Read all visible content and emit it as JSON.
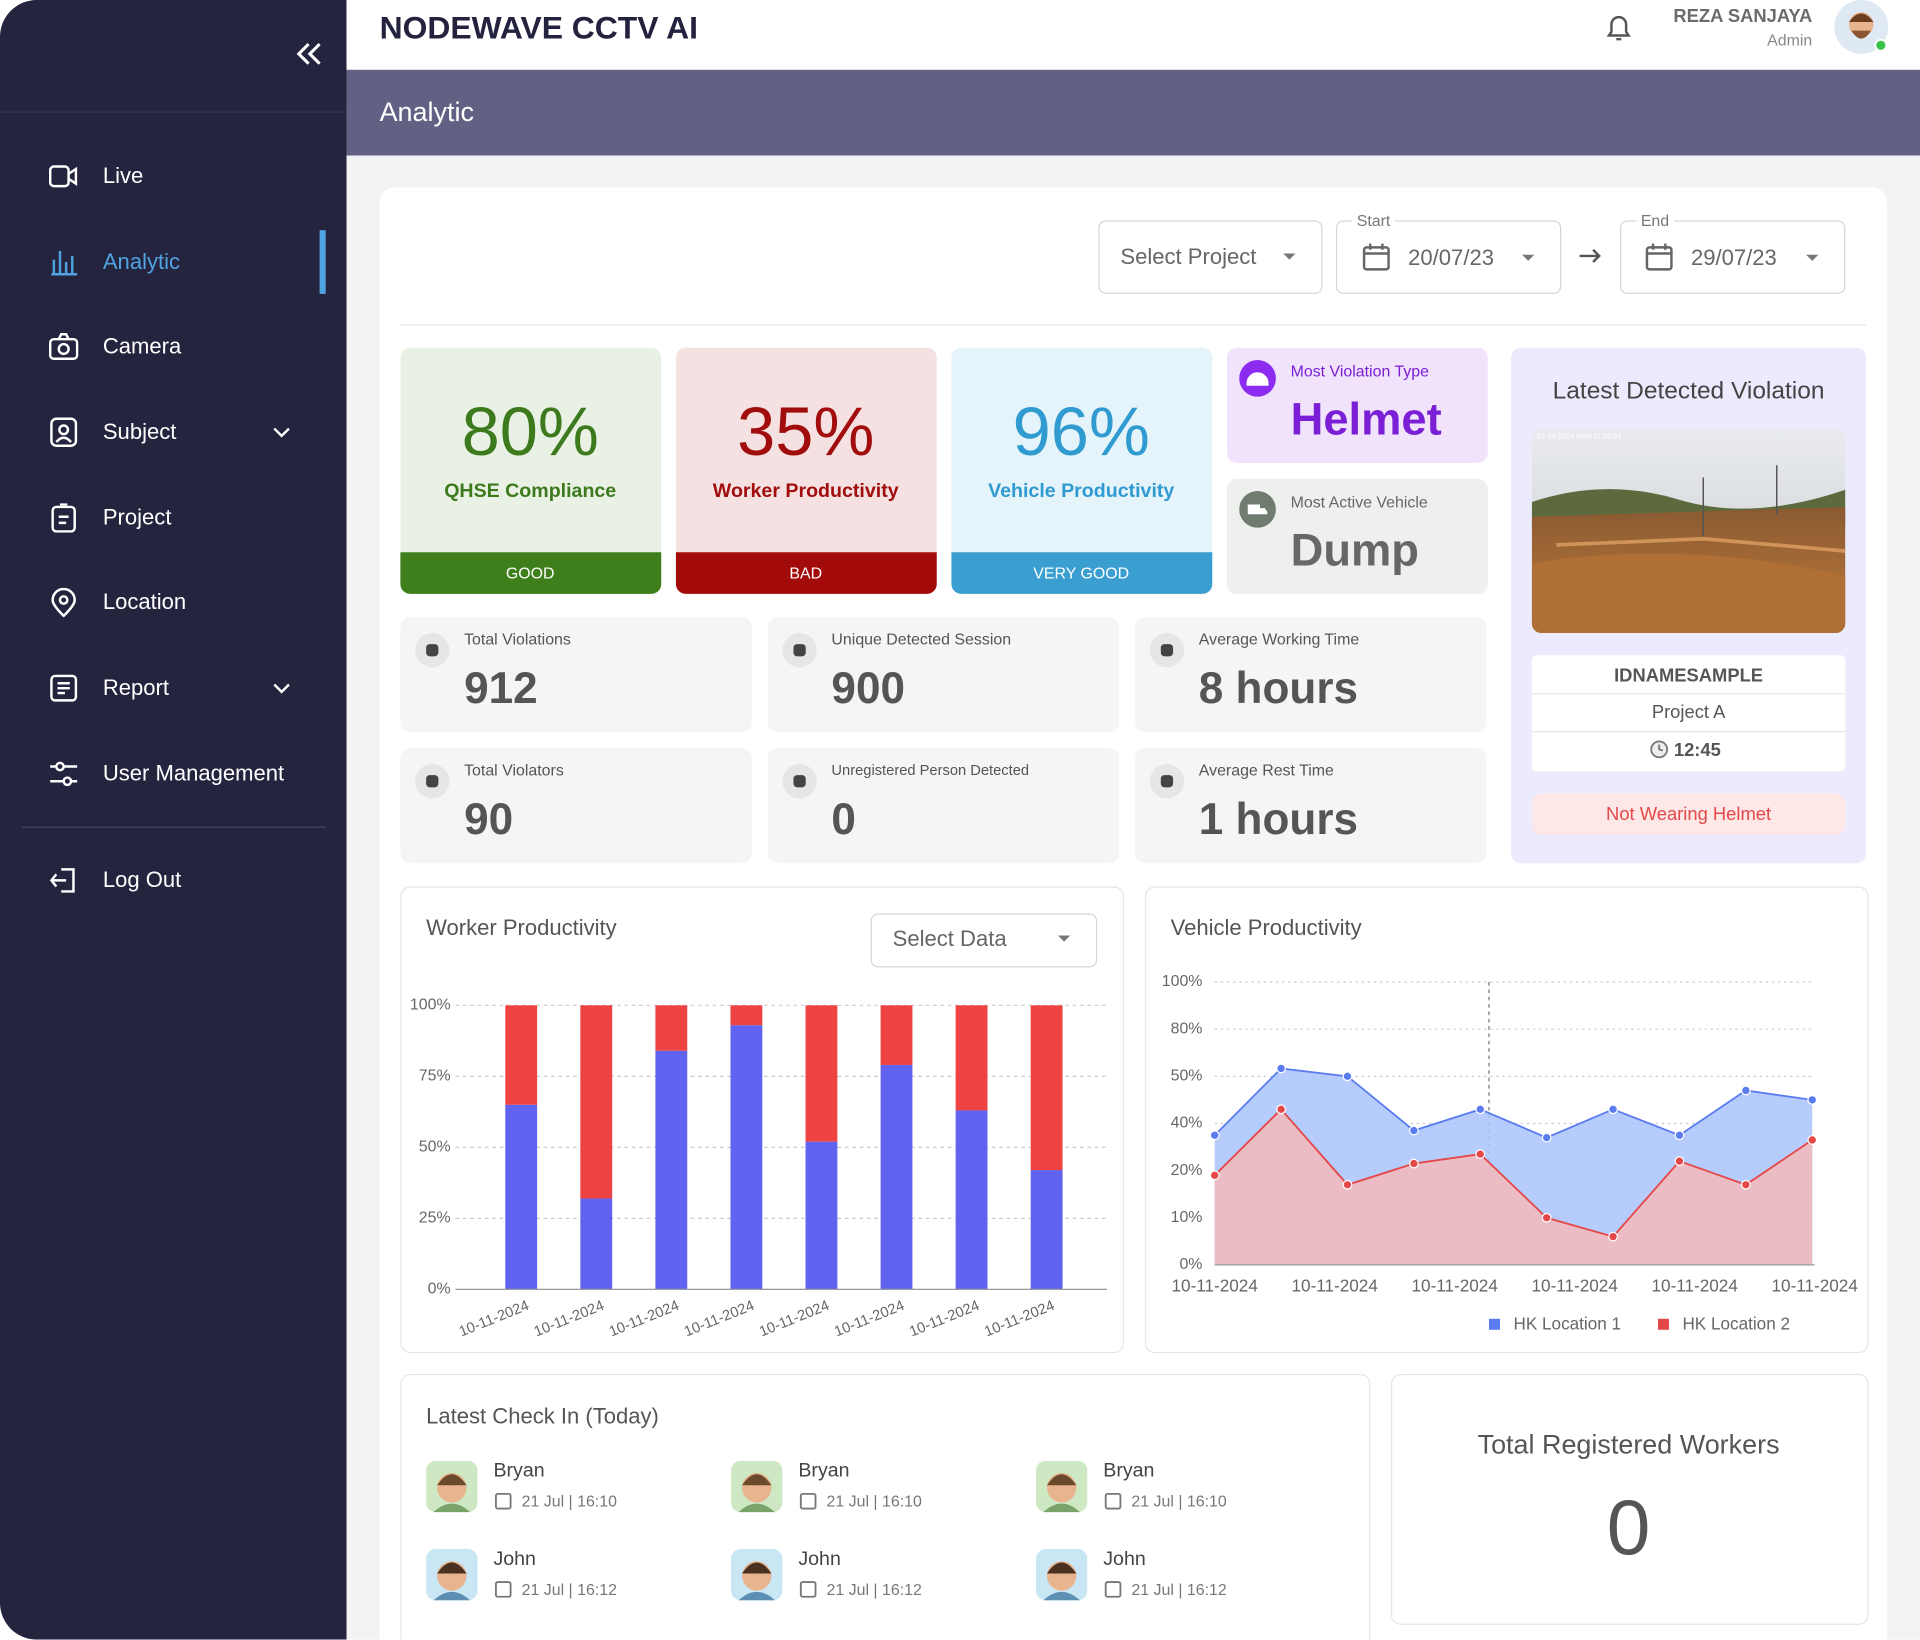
{
  "app": {
    "title": "NODEWAVE CCTV AI",
    "user": {
      "name": "REZA SANJAYA",
      "role": "Admin"
    }
  },
  "sidebar": {
    "items": [
      "Live",
      "Analytic",
      "Camera",
      "Subject",
      "Project",
      "Location",
      "Report",
      "User Management"
    ],
    "logout": "Log Out"
  },
  "page_title": "Analytic",
  "filters": {
    "project": "Select Project",
    "start_label": "Start",
    "start": "20/07/23",
    "end_label": "End",
    "end": "29/07/23"
  },
  "kpis": [
    {
      "value": "80%",
      "label": "QHSE Compliance",
      "status": "GOOD"
    },
    {
      "value": "35%",
      "label": "Worker Productivity",
      "status": "BAD"
    },
    {
      "value": "96%",
      "label": "Vehicle Productivity",
      "status": "VERY GOOD"
    }
  ],
  "highlights": [
    {
      "label": "Most Violation Type",
      "value": "Helmet"
    },
    {
      "label": "Most Active Vehicle",
      "value": "Dump"
    }
  ],
  "stats": [
    {
      "label": "Total Violations",
      "value": "912"
    },
    {
      "label": "Unique Detected Session",
      "value": "900"
    },
    {
      "label": "Average Working Time",
      "value": "8 hours"
    },
    {
      "label": "Total Violators",
      "value": "90"
    },
    {
      "label": "Unregistered Person Detected",
      "value": "0"
    },
    {
      "label": "Average Rest Time",
      "value": "1 hours"
    }
  ],
  "latest_violation": {
    "title": "Latest Detected Violation",
    "timestamp": "07-24-2024 Wed 11:32:01",
    "id": "IDNAMESAMPLE",
    "project": "Project A",
    "time": "12:45",
    "type": "Not Wearing Helmet"
  },
  "worker_select": "Select Data",
  "chart_data": [
    {
      "type": "bar",
      "stacked": true,
      "title": "Worker Productivity",
      "categories": [
        "10-11-2024",
        "10-11-2024",
        "10-11-2024",
        "10-11-2024",
        "10-11-2024",
        "10-11-2024",
        "10-11-2024",
        "10-11-2024"
      ],
      "series": [
        {
          "color": "#5f63ef",
          "values": [
            65,
            32,
            84,
            93,
            52,
            79,
            63,
            42
          ]
        },
        {
          "color": "#ee4343",
          "values": [
            35,
            68,
            16,
            7,
            48,
            21,
            37,
            58
          ]
        }
      ],
      "ylim": [
        0,
        100
      ],
      "yticks": [
        {
          "value": 0,
          "label": "0%"
        },
        {
          "value": 25,
          "label": "25%"
        },
        {
          "value": 50,
          "label": "50%"
        },
        {
          "value": 75,
          "label": "75%"
        },
        {
          "value": 100,
          "label": "100%"
        }
      ],
      "grid": true
    },
    {
      "type": "area",
      "title": "Vehicle Productivity",
      "categories": [
        null,
        null,
        null,
        null,
        null,
        null,
        null,
        null,
        null,
        null
      ],
      "xtick_labels": [
        "10-11-2024",
        "10-11-2024",
        "10-11-2024",
        "10-11-2024",
        "10-11-2024",
        "10-11-2024"
      ],
      "series": [
        {
          "name": "HK Location 1",
          "color": "#5b7cf0",
          "values": [
            35,
            55,
            50,
            37,
            43,
            34,
            43,
            35,
            47,
            45
          ]
        },
        {
          "name": "HK Location 2",
          "color": "#e54848",
          "values": [
            19,
            43,
            17,
            23,
            27,
            10,
            6,
            24,
            17,
            33
          ]
        }
      ],
      "ylim": [
        0,
        100
      ],
      "yticks": [
        {
          "value": 0,
          "label": "0%"
        },
        {
          "value": 10,
          "label": "10%"
        },
        {
          "value": 20,
          "label": "20%"
        },
        {
          "value": 40,
          "label": "40%"
        },
        {
          "value": 50,
          "label": "50%"
        },
        {
          "value": 80,
          "label": "80%"
        },
        {
          "value": 100,
          "label": "100%"
        }
      ],
      "grid": true,
      "legend": "bottom"
    }
  ],
  "checkins": {
    "title": "Latest Check In (Today)",
    "items": [
      {
        "name": "Bryan",
        "time": "21 Jul | 16:10"
      },
      {
        "name": "Bryan",
        "time": "21 Jul | 16:10"
      },
      {
        "name": "Bryan",
        "time": "21 Jul | 16:10"
      },
      {
        "name": "John",
        "time": "21 Jul | 16:12"
      },
      {
        "name": "John",
        "time": "21 Jul | 16:12"
      },
      {
        "name": "John",
        "time": "21 Jul | 16:12"
      }
    ]
  },
  "total_workers": {
    "title": "Total Registered Workers",
    "value": "0"
  }
}
